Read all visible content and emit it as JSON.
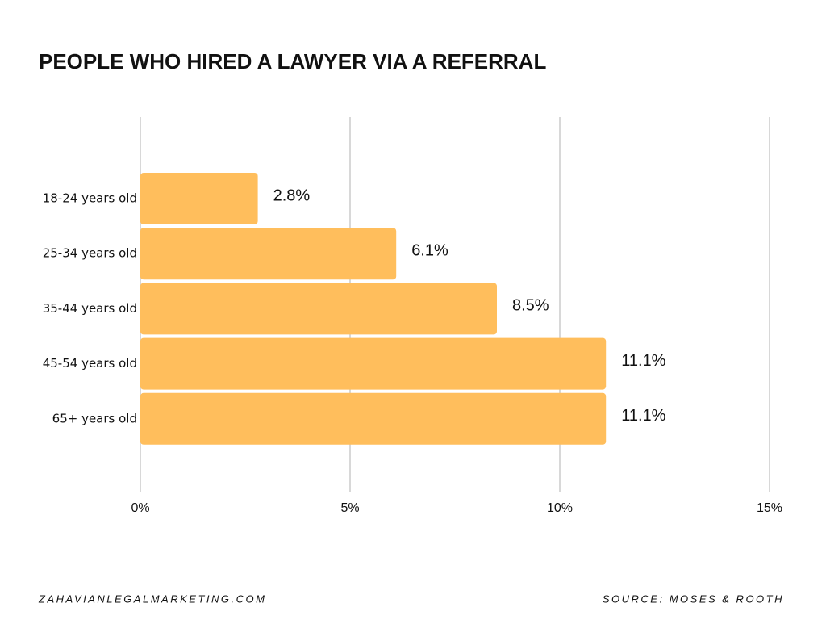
{
  "chart_data": {
    "type": "hbar",
    "title": "PEOPLE WHO HIRED A LAWYER VIA A REFERRAL",
    "categories": [
      "18-24 years old",
      "25-34 years old",
      "35-44 years old",
      "45-54 years old",
      "65+ years old"
    ],
    "values": [
      2.8,
      6.1,
      8.5,
      11.1,
      11.1
    ],
    "value_labels": [
      "2.8%",
      "6.1%",
      "8.5%",
      "11.1%",
      "11.1%"
    ],
    "color": "#ffbe5c",
    "xlim": [
      0,
      15
    ],
    "xticks": [
      {
        "value": 0,
        "label": "0%"
      },
      {
        "value": 5,
        "label": "5%"
      },
      {
        "value": 10,
        "label": "10%"
      },
      {
        "value": 15,
        "label": "15%"
      }
    ],
    "grid": true,
    "website": "ZAHAVIANLEGALMARKETING.COM",
    "source": "SOURCE: MOSES & ROOTH"
  }
}
